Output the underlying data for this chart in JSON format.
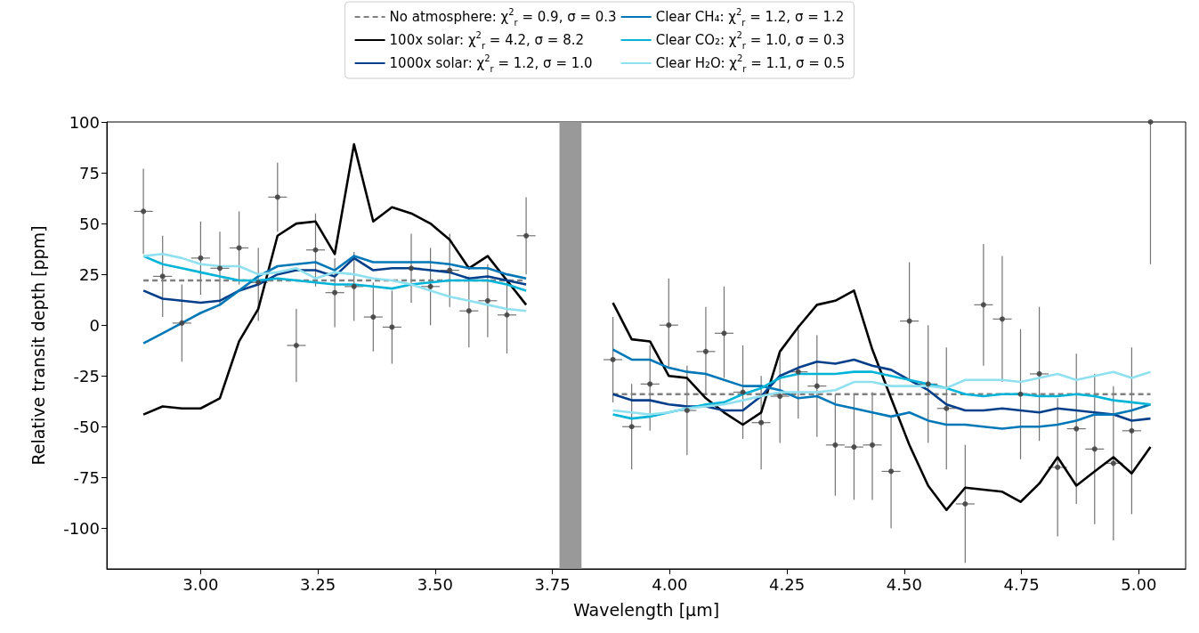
{
  "chart_data": {
    "type": "line",
    "xlabel": "Wavelength [μm]",
    "ylabel": "Relative transit depth [ppm]",
    "x": [
      2.878,
      2.919,
      2.96,
      3.0,
      3.041,
      3.082,
      3.123,
      3.164,
      3.204,
      3.245,
      3.286,
      3.327,
      3.368,
      3.408,
      3.449,
      3.49,
      3.531,
      3.572,
      3.612,
      3.653,
      3.694,
      3.79,
      3.879,
      3.919,
      3.958,
      3.998,
      4.037,
      4.077,
      4.116,
      4.156,
      4.195,
      4.235,
      4.274,
      4.314,
      4.353,
      4.393,
      4.432,
      4.472,
      4.511,
      4.551,
      4.59,
      4.63,
      4.669,
      4.709,
      4.748,
      4.788,
      4.827,
      4.867,
      4.906,
      4.946,
      4.985,
      5.025
    ],
    "series": [
      {
        "name": "No atmosphere: χ$^{2}$$_{r}$ = 0.9, σ = 0.3",
        "color": "#808080",
        "line_style": "dashed",
        "values": [
          22,
          22,
          22,
          22,
          22,
          22,
          22,
          22,
          22,
          22,
          22,
          22,
          22,
          22,
          22,
          22,
          22,
          22,
          22,
          22,
          22,
          null,
          -34,
          -34,
          -34,
          -34,
          -34,
          -34,
          -34,
          -34,
          -34,
          -34,
          -34,
          -34,
          -34,
          -34,
          -34,
          -34,
          -34,
          -34,
          -34,
          -34,
          -34,
          -34,
          -34,
          -34,
          -34,
          -34,
          -34,
          -34,
          -34,
          -34
        ]
      },
      {
        "name": "100x solar: χ$^{2}$$_{r}$ = 4.2, σ = 8.2",
        "color": "#000000",
        "values": [
          -44,
          -40,
          -41,
          -41,
          -36,
          -8,
          8,
          44,
          50,
          51,
          35,
          89,
          51,
          58,
          55,
          50,
          42,
          28,
          34,
          22,
          10,
          null,
          11,
          -7,
          -8,
          -25,
          -26,
          -36,
          -43,
          -49,
          -43,
          -13,
          -1,
          10,
          12,
          17,
          -12,
          -36,
          -59,
          -79,
          -91,
          -80,
          -81,
          -82,
          -87,
          -78,
          -65,
          -79,
          -72,
          -65,
          -73,
          -60
        ]
      },
      {
        "name": "1000x solar: χ$^{2}$$_{r}$ = 1.2, σ = 1.0",
        "color": "#023e8a",
        "values": [
          17,
          13,
          12,
          11,
          12,
          17,
          20,
          25,
          27,
          27,
          24,
          33,
          27,
          28,
          28,
          27,
          26,
          23,
          24,
          22,
          20,
          null,
          -34,
          -37,
          -37,
          -39,
          -40,
          -40,
          -42,
          -42,
          -35,
          -25,
          -21,
          -18,
          -19,
          -17,
          -20,
          -22,
          -27,
          -32,
          -39,
          -42,
          -42,
          -41,
          -42,
          -43,
          -41,
          -42,
          -43,
          -44,
          -47,
          -46
        ]
      },
      {
        "name": "Clear CH₄: χ$^{2}$$_{r}$ = 1.2, σ = 1.2",
        "color": "#0077b6",
        "values": [
          -9,
          -4,
          1,
          6,
          10,
          17,
          24,
          29,
          30,
          31,
          27,
          34,
          31,
          31,
          31,
          31,
          30,
          28,
          28,
          25,
          23,
          null,
          -12,
          -17,
          -17,
          -21,
          -23,
          -24,
          -27,
          -30,
          -30,
          -32,
          -36,
          -35,
          -39,
          -41,
          -43,
          -45,
          -43,
          -47,
          -49,
          -49,
          -50,
          -51,
          -50,
          -50,
          -49,
          -47,
          -44,
          -44,
          -42,
          -39
        ]
      },
      {
        "name": "Clear CO₂: χ$^{2}$$_{r}$ = 1.0, σ = 0.3",
        "color": "#00b4d8",
        "values": [
          34,
          30,
          28,
          26,
          24,
          22,
          22,
          23,
          22,
          21,
          20,
          20,
          19,
          18,
          20,
          21,
          22,
          22,
          22,
          20,
          17,
          null,
          -44,
          -46,
          -45,
          -43,
          -41,
          -39,
          -38,
          -34,
          -31,
          -26,
          -24,
          -24,
          -24,
          -23,
          -23,
          -25,
          -27,
          -29,
          -31,
          -34,
          -35,
          -34,
          -34,
          -35,
          -35,
          -34,
          -35,
          -37,
          -38,
          -39
        ]
      },
      {
        "name": "Clear H₂O: χ$^{2}$$_{r}$ = 1.1, σ = 0.5",
        "color": "#90e0ef",
        "values": [
          34,
          35,
          33,
          30,
          29,
          29,
          25,
          26,
          28,
          23,
          26,
          25,
          23,
          22,
          20,
          17,
          14,
          12,
          10,
          8,
          7,
          null,
          -42,
          -43,
          -44,
          -43,
          -41,
          -40,
          -39,
          -37,
          -35,
          -33,
          -33,
          -33,
          -32,
          -28,
          -28,
          -30,
          -30,
          -30,
          -31,
          -27,
          -27,
          -27,
          -28,
          -26,
          -24,
          -27,
          -25,
          -23,
          -26,
          -23
        ]
      },
      {
        "type": "scatter",
        "marker": "circle",
        "color": "#444444",
        "values": [
          56,
          24,
          1,
          33,
          28,
          38,
          21,
          63,
          -10,
          37,
          16,
          19,
          4,
          -1,
          28,
          19,
          27,
          7,
          12,
          5,
          44,
          null,
          -17,
          -50,
          -29,
          0,
          -42,
          -13,
          -4,
          -33,
          -48,
          -35,
          -23,
          -30,
          -59,
          -60,
          -59,
          -72,
          2,
          -29,
          -41,
          -88,
          10,
          3,
          -34,
          -24,
          -70,
          -51,
          -61,
          -68,
          -52,
          100
        ],
        "errors": [
          [
            35,
            77
          ],
          [
            4,
            44
          ],
          [
            -18,
            20
          ],
          [
            15,
            51
          ],
          [
            10,
            46
          ],
          [
            20,
            56
          ],
          [
            2,
            38
          ],
          [
            46,
            80
          ],
          [
            -28,
            8
          ],
          [
            19,
            55
          ],
          [
            -1,
            33
          ],
          [
            2,
            36
          ],
          [
            -13,
            21
          ],
          [
            -19,
            17
          ],
          [
            11,
            45
          ],
          [
            0,
            38
          ],
          [
            9,
            45
          ],
          [
            -11,
            24
          ],
          [
            -6,
            30
          ],
          [
            -14,
            23
          ],
          [
            25,
            63
          ],
          null,
          [
            -38,
            4
          ],
          [
            -71,
            -29
          ],
          [
            -52,
            -10
          ],
          [
            -21,
            23
          ],
          [
            -64,
            -20
          ],
          [
            -34,
            9
          ],
          [
            -26,
            19
          ],
          [
            -56,
            -10
          ],
          [
            -71,
            -25
          ],
          [
            -58,
            -13
          ],
          [
            -46,
            0
          ],
          [
            -55,
            -5
          ],
          [
            -84,
            -34
          ],
          [
            -86,
            -34
          ],
          [
            -86,
            -33
          ],
          [
            -100,
            -45
          ],
          [
            -27,
            31
          ],
          [
            -58,
            0
          ],
          [
            -71,
            -11
          ],
          [
            -117,
            -59
          ],
          [
            -20,
            40
          ],
          [
            -28,
            34
          ],
          [
            -66,
            -2
          ],
          [
            -57,
            9
          ],
          [
            -104,
            -36
          ],
          [
            -88,
            -14
          ],
          [
            -98,
            -24
          ],
          [
            -106,
            -30
          ],
          [
            -93,
            -11
          ],
          [
            30,
            100
          ]
        ],
        "xerrors": [
          0.02,
          0.02,
          0.02,
          0.02,
          0.02,
          0.02,
          0.02,
          0.02,
          0.02,
          0.02,
          0.02,
          0.02,
          0.02,
          0.02,
          0.02,
          0.02,
          0.02,
          0.02,
          0.02,
          0.02,
          0.02,
          null,
          0.02,
          0.02,
          0.02,
          0.02,
          0.02,
          0.02,
          0.02,
          0.02,
          0.02,
          0.02,
          0.02,
          0.02,
          0.02,
          0.02,
          0.02,
          0.02,
          0.02,
          0.02,
          0.02,
          0.02,
          0.02,
          0.02,
          0.02,
          0.02,
          0.02,
          0.02,
          0.02,
          0.02,
          0.02,
          null
        ]
      }
    ],
    "bands": [
      {
        "axis": "x",
        "from": 3.765,
        "to": 3.812,
        "color": "#999999"
      }
    ],
    "xlim": [
      2.8,
      5.1
    ],
    "xticks": [
      {
        "value": 3,
        "label": "3.00"
      },
      {
        "value": 3.25,
        "label": "3.25"
      },
      {
        "value": 3.5,
        "label": "3.50"
      },
      {
        "value": 3.75,
        "label": "3.75"
      },
      {
        "value": 4,
        "label": "4.00"
      },
      {
        "value": 4.25,
        "label": "4.25"
      },
      {
        "value": 4.5,
        "label": "4.50"
      },
      {
        "value": 4.75,
        "label": "4.75"
      },
      {
        "value": 5,
        "label": "5.00"
      }
    ],
    "ylim": [
      -120,
      100
    ],
    "yticks": [
      -100,
      -75,
      -50,
      -25,
      0,
      25,
      50,
      75,
      100
    ],
    "legend": "top",
    "marker": "none",
    "line_style": "solid",
    "grid": false
  }
}
